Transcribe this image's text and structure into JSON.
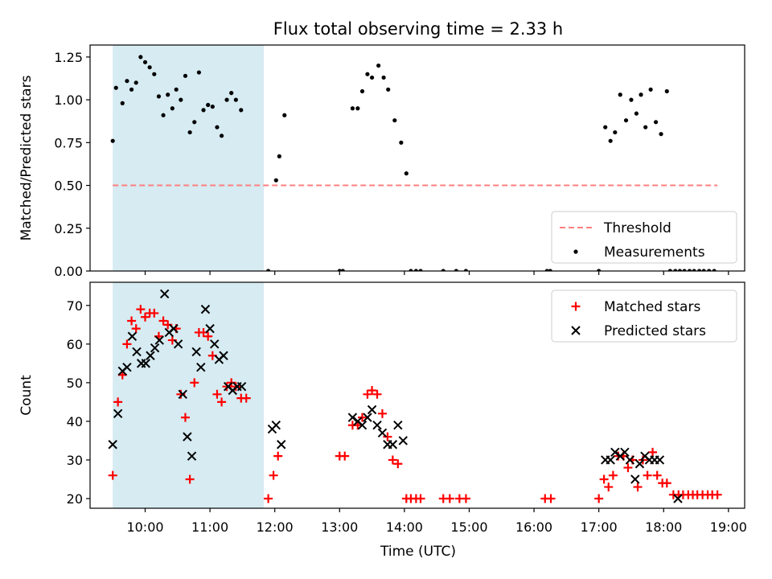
{
  "figure": {
    "title": "Flux total observing time = 2.33 h",
    "xlabel": "Time (UTC)",
    "xticks": [
      {
        "value": 10,
        "label": "10:00"
      },
      {
        "value": 11,
        "label": "11:00"
      },
      {
        "value": 12,
        "label": "12:00"
      },
      {
        "value": 13,
        "label": "13:00"
      },
      {
        "value": 14,
        "label": "14:00"
      },
      {
        "value": 15,
        "label": "15:00"
      },
      {
        "value": 16,
        "label": "16:00"
      },
      {
        "value": 17,
        "label": "17:00"
      },
      {
        "value": 18,
        "label": "18:00"
      },
      {
        "value": 19,
        "label": "19:00"
      }
    ],
    "xlim": [
      9.15,
      19.25
    ],
    "shaded_interval": {
      "start": 9.5,
      "end": 11.83,
      "color": "#add8e6"
    }
  },
  "chart_data": [
    {
      "type": "scatter",
      "ylabel": "Matched/Predicted stars",
      "ylim": [
        0,
        1.32
      ],
      "yticks": [
        {
          "value": 0.0,
          "label": "0.00"
        },
        {
          "value": 0.25,
          "label": "0.25"
        },
        {
          "value": 0.5,
          "label": "0.50"
        },
        {
          "value": 0.75,
          "label": "0.75"
        },
        {
          "value": 1.0,
          "label": "1.00"
        },
        {
          "value": 1.25,
          "label": "1.25"
        }
      ],
      "threshold": {
        "name": "Threshold",
        "value": 0.5,
        "x_start": 9.5,
        "x_end": 18.83,
        "color": "#ff7f7f"
      },
      "legend": {
        "placement": "lower-right",
        "items": [
          {
            "label": "Threshold",
            "kind": "dashed-line",
            "color": "#ff7f7f"
          },
          {
            "label": "Measurements",
            "kind": "dot",
            "color": "#000000"
          }
        ]
      },
      "series": [
        {
          "name": "Measurements",
          "color": "#000000",
          "points": [
            [
              9.5,
              0.76
            ],
            [
              9.55,
              1.07
            ],
            [
              9.65,
              0.98
            ],
            [
              9.72,
              1.11
            ],
            [
              9.79,
              1.06
            ],
            [
              9.86,
              1.1
            ],
            [
              9.93,
              1.25
            ],
            [
              10.0,
              1.22
            ],
            [
              10.07,
              1.19
            ],
            [
              10.14,
              1.15
            ],
            [
              10.21,
              1.02
            ],
            [
              10.28,
              0.91
            ],
            [
              10.35,
              1.03
            ],
            [
              10.42,
              0.95
            ],
            [
              10.48,
              1.06
            ],
            [
              10.55,
              1.0
            ],
            [
              10.62,
              1.14
            ],
            [
              10.69,
              0.81
            ],
            [
              10.76,
              0.87
            ],
            [
              10.83,
              1.16
            ],
            [
              10.9,
              0.94
            ],
            [
              10.97,
              0.97
            ],
            [
              11.04,
              0.96
            ],
            [
              11.11,
              0.84
            ],
            [
              11.18,
              0.79
            ],
            [
              11.26,
              1.0
            ],
            [
              11.33,
              1.04
            ],
            [
              11.4,
              1.0
            ],
            [
              11.48,
              0.94
            ],
            [
              11.9,
              0.0
            ],
            [
              12.02,
              0.53
            ],
            [
              12.07,
              0.67
            ],
            [
              12.15,
              0.91
            ],
            [
              13.0,
              0.0
            ],
            [
              13.05,
              0.0
            ],
            [
              13.2,
              0.95
            ],
            [
              13.28,
              0.95
            ],
            [
              13.35,
              1.05
            ],
            [
              13.43,
              1.15
            ],
            [
              13.5,
              1.13
            ],
            [
              13.6,
              1.2
            ],
            [
              13.68,
              1.13
            ],
            [
              13.75,
              1.06
            ],
            [
              13.85,
              0.88
            ],
            [
              13.95,
              0.75
            ],
            [
              14.03,
              0.57
            ],
            [
              14.1,
              0.0
            ],
            [
              14.18,
              0.0
            ],
            [
              14.25,
              0.0
            ],
            [
              14.6,
              0.0
            ],
            [
              14.8,
              0.0
            ],
            [
              14.95,
              0.0
            ],
            [
              16.2,
              0.0
            ],
            [
              16.25,
              0.0
            ],
            [
              17.0,
              0.0
            ],
            [
              17.1,
              0.84
            ],
            [
              17.18,
              0.76
            ],
            [
              17.25,
              0.81
            ],
            [
              17.33,
              1.03
            ],
            [
              17.42,
              0.88
            ],
            [
              17.5,
              1.0
            ],
            [
              17.58,
              0.92
            ],
            [
              17.65,
              1.03
            ],
            [
              17.72,
              0.84
            ],
            [
              17.8,
              1.06
            ],
            [
              17.88,
              0.87
            ],
            [
              17.96,
              0.8
            ],
            [
              18.05,
              1.05
            ],
            [
              18.1,
              0.0
            ],
            [
              18.18,
              0.0
            ],
            [
              18.25,
              0.0
            ],
            [
              18.32,
              0.0
            ],
            [
              18.4,
              0.0
            ],
            [
              18.47,
              0.0
            ],
            [
              18.55,
              0.0
            ],
            [
              18.62,
              0.0
            ],
            [
              18.7,
              0.0
            ],
            [
              18.78,
              0.0
            ]
          ]
        }
      ]
    },
    {
      "type": "scatter",
      "ylabel": "Count",
      "ylim": [
        17.5,
        76
      ],
      "yticks": [
        {
          "value": 20,
          "label": "20"
        },
        {
          "value": 30,
          "label": "30"
        },
        {
          "value": 40,
          "label": "40"
        },
        {
          "value": 50,
          "label": "50"
        },
        {
          "value": 60,
          "label": "60"
        },
        {
          "value": 70,
          "label": "70"
        }
      ],
      "legend": {
        "placement": "upper-right",
        "items": [
          {
            "label": "Matched stars",
            "kind": "plus",
            "color": "#ff0000"
          },
          {
            "label": "Predicted stars",
            "kind": "x",
            "color": "#000000"
          }
        ]
      },
      "series": [
        {
          "name": "Matched stars",
          "marker": "plus",
          "color": "#ff0000",
          "points": [
            [
              9.5,
              26
            ],
            [
              9.58,
              45
            ],
            [
              9.65,
              52
            ],
            [
              9.72,
              60
            ],
            [
              9.79,
              66
            ],
            [
              9.86,
              64
            ],
            [
              9.93,
              69
            ],
            [
              10.0,
              67
            ],
            [
              10.07,
              68
            ],
            [
              10.14,
              68
            ],
            [
              10.21,
              62
            ],
            [
              10.28,
              66
            ],
            [
              10.35,
              65
            ],
            [
              10.42,
              61
            ],
            [
              10.48,
              64
            ],
            [
              10.55,
              47
            ],
            [
              10.62,
              41
            ],
            [
              10.69,
              25
            ],
            [
              10.76,
              50
            ],
            [
              10.83,
              63
            ],
            [
              10.9,
              63
            ],
            [
              10.97,
              62
            ],
            [
              11.04,
              57
            ],
            [
              11.11,
              47
            ],
            [
              11.18,
              45
            ],
            [
              11.26,
              49
            ],
            [
              11.33,
              50
            ],
            [
              11.4,
              49
            ],
            [
              11.48,
              46
            ],
            [
              11.56,
              46
            ],
            [
              11.9,
              20
            ],
            [
              11.98,
              26
            ],
            [
              12.05,
              31
            ],
            [
              13.0,
              31
            ],
            [
              13.08,
              31
            ],
            [
              13.2,
              39
            ],
            [
              13.28,
              39
            ],
            [
              13.35,
              41
            ],
            [
              13.43,
              47
            ],
            [
              13.5,
              48
            ],
            [
              13.58,
              47
            ],
            [
              13.66,
              42
            ],
            [
              13.74,
              36
            ],
            [
              13.82,
              30
            ],
            [
              13.9,
              29
            ],
            [
              14.03,
              20
            ],
            [
              14.1,
              20
            ],
            [
              14.18,
              20
            ],
            [
              14.25,
              20
            ],
            [
              14.6,
              20
            ],
            [
              14.7,
              20
            ],
            [
              14.85,
              20
            ],
            [
              14.95,
              20
            ],
            [
              16.17,
              20
            ],
            [
              16.26,
              20
            ],
            [
              17.0,
              20
            ],
            [
              17.08,
              25
            ],
            [
              17.15,
              23
            ],
            [
              17.22,
              26
            ],
            [
              17.3,
              31
            ],
            [
              17.38,
              31
            ],
            [
              17.45,
              28
            ],
            [
              17.52,
              30
            ],
            [
              17.6,
              23
            ],
            [
              17.68,
              30
            ],
            [
              17.75,
              26
            ],
            [
              17.83,
              32
            ],
            [
              17.9,
              26
            ],
            [
              17.98,
              24
            ],
            [
              18.05,
              24
            ],
            [
              18.15,
              21
            ],
            [
              18.23,
              21
            ],
            [
              18.3,
              21
            ],
            [
              18.38,
              21
            ],
            [
              18.45,
              21
            ],
            [
              18.52,
              21
            ],
            [
              18.6,
              21
            ],
            [
              18.68,
              21
            ],
            [
              18.75,
              21
            ],
            [
              18.83,
              21
            ]
          ]
        },
        {
          "name": "Predicted stars",
          "marker": "x",
          "color": "#000000",
          "points": [
            [
              9.5,
              34
            ],
            [
              9.58,
              42
            ],
            [
              9.65,
              53
            ],
            [
              9.72,
              54
            ],
            [
              9.8,
              62
            ],
            [
              9.87,
              58
            ],
            [
              9.94,
              55
            ],
            [
              10.01,
              55
            ],
            [
              10.08,
              57
            ],
            [
              10.15,
              59
            ],
            [
              10.22,
              61
            ],
            [
              10.3,
              73
            ],
            [
              10.37,
              63
            ],
            [
              10.44,
              64
            ],
            [
              10.51,
              60
            ],
            [
              10.58,
              47
            ],
            [
              10.65,
              36
            ],
            [
              10.72,
              31
            ],
            [
              10.79,
              58
            ],
            [
              10.86,
              54
            ],
            [
              10.93,
              69
            ],
            [
              11.0,
              64
            ],
            [
              11.07,
              60
            ],
            [
              11.14,
              56
            ],
            [
              11.21,
              57
            ],
            [
              11.28,
              49
            ],
            [
              11.35,
              48
            ],
            [
              11.42,
              49
            ],
            [
              11.49,
              49
            ],
            [
              11.96,
              38
            ],
            [
              12.02,
              39
            ],
            [
              12.1,
              34
            ],
            [
              13.2,
              41
            ],
            [
              13.28,
              40
            ],
            [
              13.35,
              39
            ],
            [
              13.43,
              41
            ],
            [
              13.5,
              43
            ],
            [
              13.58,
              39
            ],
            [
              13.66,
              37
            ],
            [
              13.74,
              34
            ],
            [
              13.82,
              34
            ],
            [
              13.9,
              39
            ],
            [
              13.98,
              35
            ],
            [
              17.1,
              30
            ],
            [
              17.18,
              30
            ],
            [
              17.25,
              32
            ],
            [
              17.33,
              31
            ],
            [
              17.4,
              32
            ],
            [
              17.48,
              30
            ],
            [
              17.56,
              25
            ],
            [
              17.63,
              29
            ],
            [
              17.71,
              31
            ],
            [
              17.78,
              30
            ],
            [
              17.86,
              30
            ],
            [
              17.94,
              30
            ],
            [
              18.22,
              20
            ]
          ]
        }
      ]
    }
  ]
}
